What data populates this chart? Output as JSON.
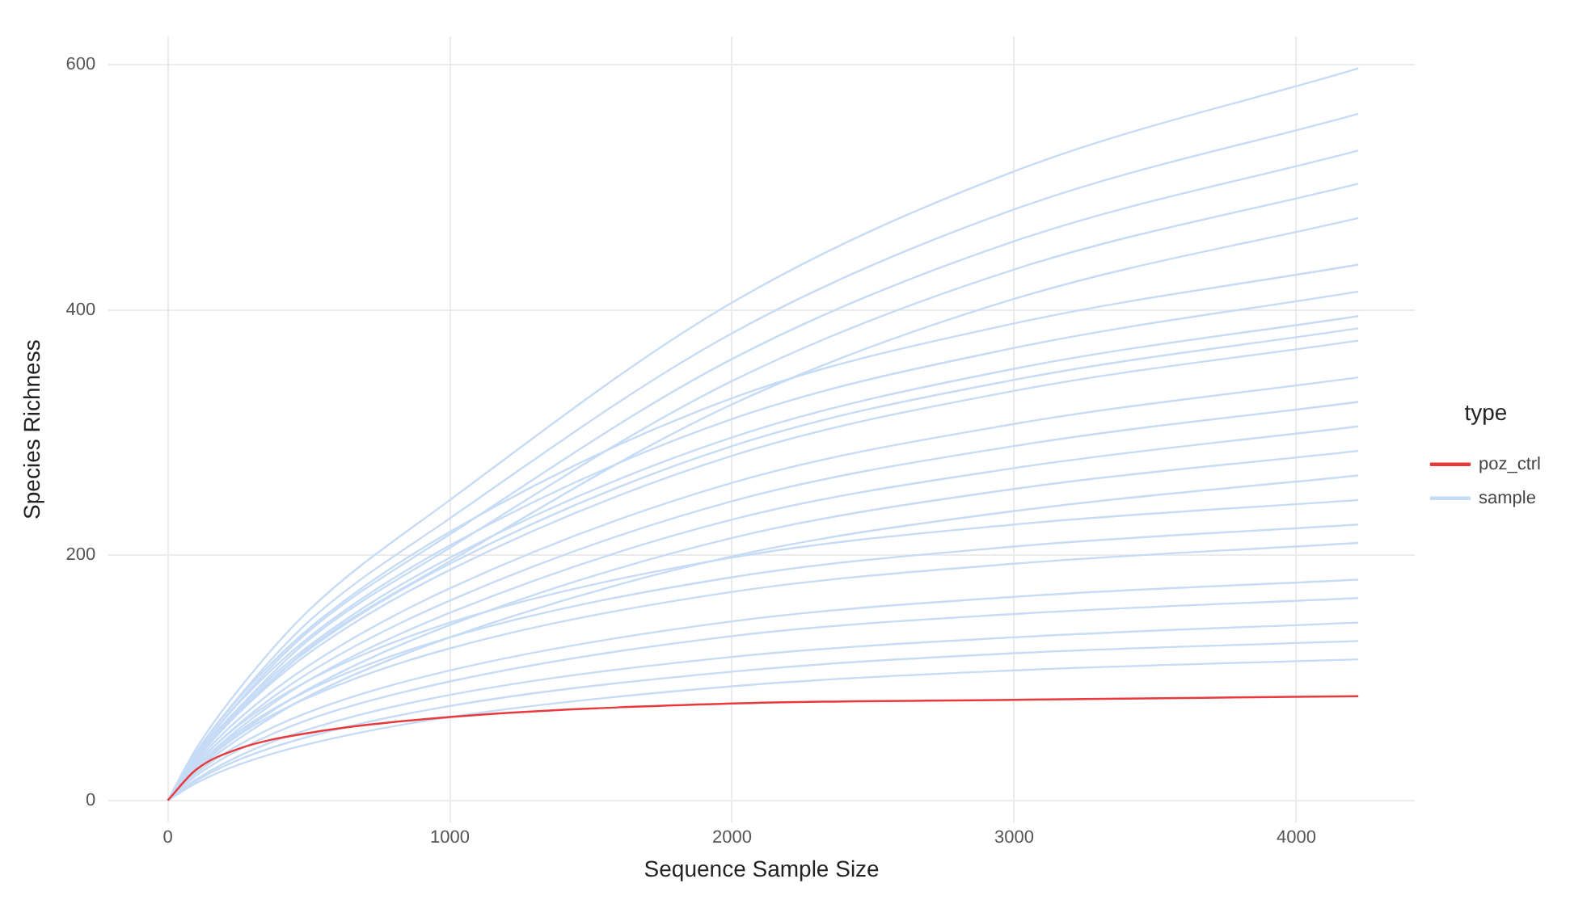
{
  "chart_data": {
    "type": "line",
    "xlabel": "Sequence Sample Size",
    "ylabel": "Species Richness",
    "legend_title": "type",
    "legend": "right",
    "grid": true,
    "marker": "none",
    "line_style": "solid",
    "x": [
      0,
      100,
      250,
      500,
      1000,
      2000,
      3000,
      4220
    ],
    "xlim": [
      -210,
      4420
    ],
    "xticks": [
      0,
      1000,
      2000,
      3000,
      4000
    ],
    "ylim": [
      -18,
      623
    ],
    "yticks": [
      0,
      200,
      400,
      600
    ],
    "series": [
      {
        "name": "poz_ctrl",
        "color": "#e8393c",
        "values": [
          0,
          25,
          42,
          55,
          68,
          79,
          82,
          85
        ]
      },
      {
        "name": "sample",
        "color": "#c6dbf5",
        "values": [
          0,
          42,
          90,
          155,
          245,
          406,
          513,
          597
        ]
      },
      {
        "color": "#c6dbf5",
        "values": [
          0,
          39,
          84,
          146,
          230,
          381,
          482,
          560
        ]
      },
      {
        "color": "#c6dbf5",
        "values": [
          0,
          37,
          80,
          138,
          217,
          360,
          456,
          530
        ]
      },
      {
        "color": "#c6dbf5",
        "values": [
          0,
          35,
          75,
          131,
          206,
          342,
          433,
          503
        ]
      },
      {
        "color": "#c6dbf5",
        "values": [
          0,
          33,
          71,
          124,
          195,
          323,
          409,
          475
        ]
      },
      {
        "color": "#c6dbf5",
        "values": [
          0,
          39,
          83,
          140,
          219,
          328,
          389,
          437
        ]
      },
      {
        "color": "#c6dbf5",
        "values": [
          0,
          37,
          79,
          133,
          208,
          311,
          369,
          415
        ]
      },
      {
        "color": "#c6dbf5",
        "values": [
          0,
          36,
          75,
          126,
          198,
          296,
          352,
          395
        ]
      },
      {
        "color": "#c6dbf5",
        "values": [
          0,
          35,
          73,
          123,
          193,
          289,
          343,
          385
        ]
      },
      {
        "color": "#c6dbf5",
        "values": [
          0,
          34,
          71,
          120,
          188,
          281,
          334,
          375
        ]
      },
      {
        "color": "#c6dbf5",
        "values": [
          0,
          31,
          66,
          110,
          173,
          259,
          307,
          345
        ]
      },
      {
        "color": "#c6dbf5",
        "values": [
          0,
          29,
          62,
          104,
          163,
          244,
          289,
          325
        ]
      },
      {
        "color": "#c6dbf5",
        "values": [
          0,
          27,
          58,
          98,
          153,
          229,
          271,
          305
        ]
      },
      {
        "color": "#c6dbf5",
        "values": [
          0,
          26,
          54,
          91,
          143,
          214,
          254,
          285
        ]
      },
      {
        "color": "#c6dbf5",
        "values": [
          0,
          24,
          50,
          85,
          133,
          199,
          236,
          265
        ]
      },
      {
        "color": "#c6dbf5",
        "values": [
          0,
          29,
          61,
          98,
          145,
          198,
          225,
          245
        ]
      },
      {
        "color": "#c6dbf5",
        "values": [
          0,
          27,
          56,
          90,
          133,
          182,
          207,
          225
        ]
      },
      {
        "color": "#c6dbf5",
        "values": [
          0,
          25,
          53,
          84,
          124,
          170,
          193,
          210
        ]
      },
      {
        "color": "#c6dbf5",
        "values": [
          0,
          22,
          45,
          72,
          106,
          146,
          166,
          180
        ]
      },
      {
        "color": "#c6dbf5",
        "values": [
          0,
          20,
          41,
          66,
          97,
          134,
          152,
          165
        ]
      },
      {
        "color": "#c6dbf5",
        "values": [
          0,
          17,
          36,
          58,
          86,
          117,
          133,
          145
        ]
      },
      {
        "color": "#c6dbf5",
        "values": [
          0,
          16,
          33,
          52,
          77,
          105,
          120,
          130
        ]
      },
      {
        "color": "#c6dbf5",
        "values": [
          0,
          14,
          29,
          46,
          68,
          93,
          106,
          115
        ]
      }
    ]
  }
}
